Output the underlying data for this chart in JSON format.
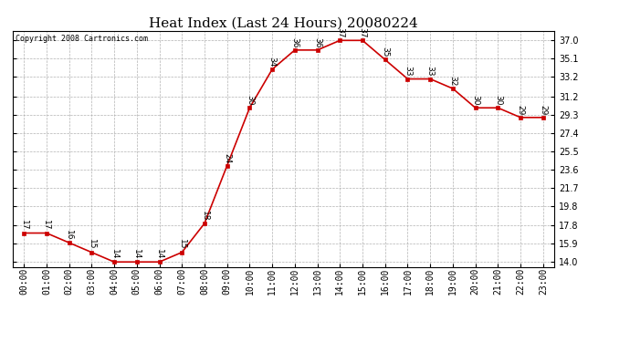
{
  "title": "Heat Index (Last 24 Hours) 20080224",
  "copyright": "Copyright 2008 Cartronics.com",
  "hours": [
    "00:00",
    "01:00",
    "02:00",
    "03:00",
    "04:00",
    "05:00",
    "06:00",
    "07:00",
    "08:00",
    "09:00",
    "10:00",
    "11:00",
    "12:00",
    "13:00",
    "14:00",
    "15:00",
    "16:00",
    "17:00",
    "18:00",
    "19:00",
    "20:00",
    "21:00",
    "22:00",
    "23:00"
  ],
  "values": [
    17,
    17,
    16,
    15,
    14,
    14,
    14,
    15,
    18,
    24,
    30,
    34,
    36,
    36,
    37,
    37,
    35,
    33,
    33,
    32,
    30,
    30,
    29,
    29
  ],
  "line_color": "#cc0000",
  "marker_color": "#cc0000",
  "bg_color": "#ffffff",
  "grid_color": "#aaaaaa",
  "yticks": [
    14.0,
    15.9,
    17.8,
    19.8,
    21.7,
    23.6,
    25.5,
    27.4,
    29.3,
    31.2,
    33.2,
    35.1,
    37.0
  ],
  "ylim": [
    13.5,
    38.0
  ],
  "title_fontsize": 11,
  "copyright_fontsize": 6,
  "label_fontsize": 6.5,
  "tick_fontsize": 7
}
